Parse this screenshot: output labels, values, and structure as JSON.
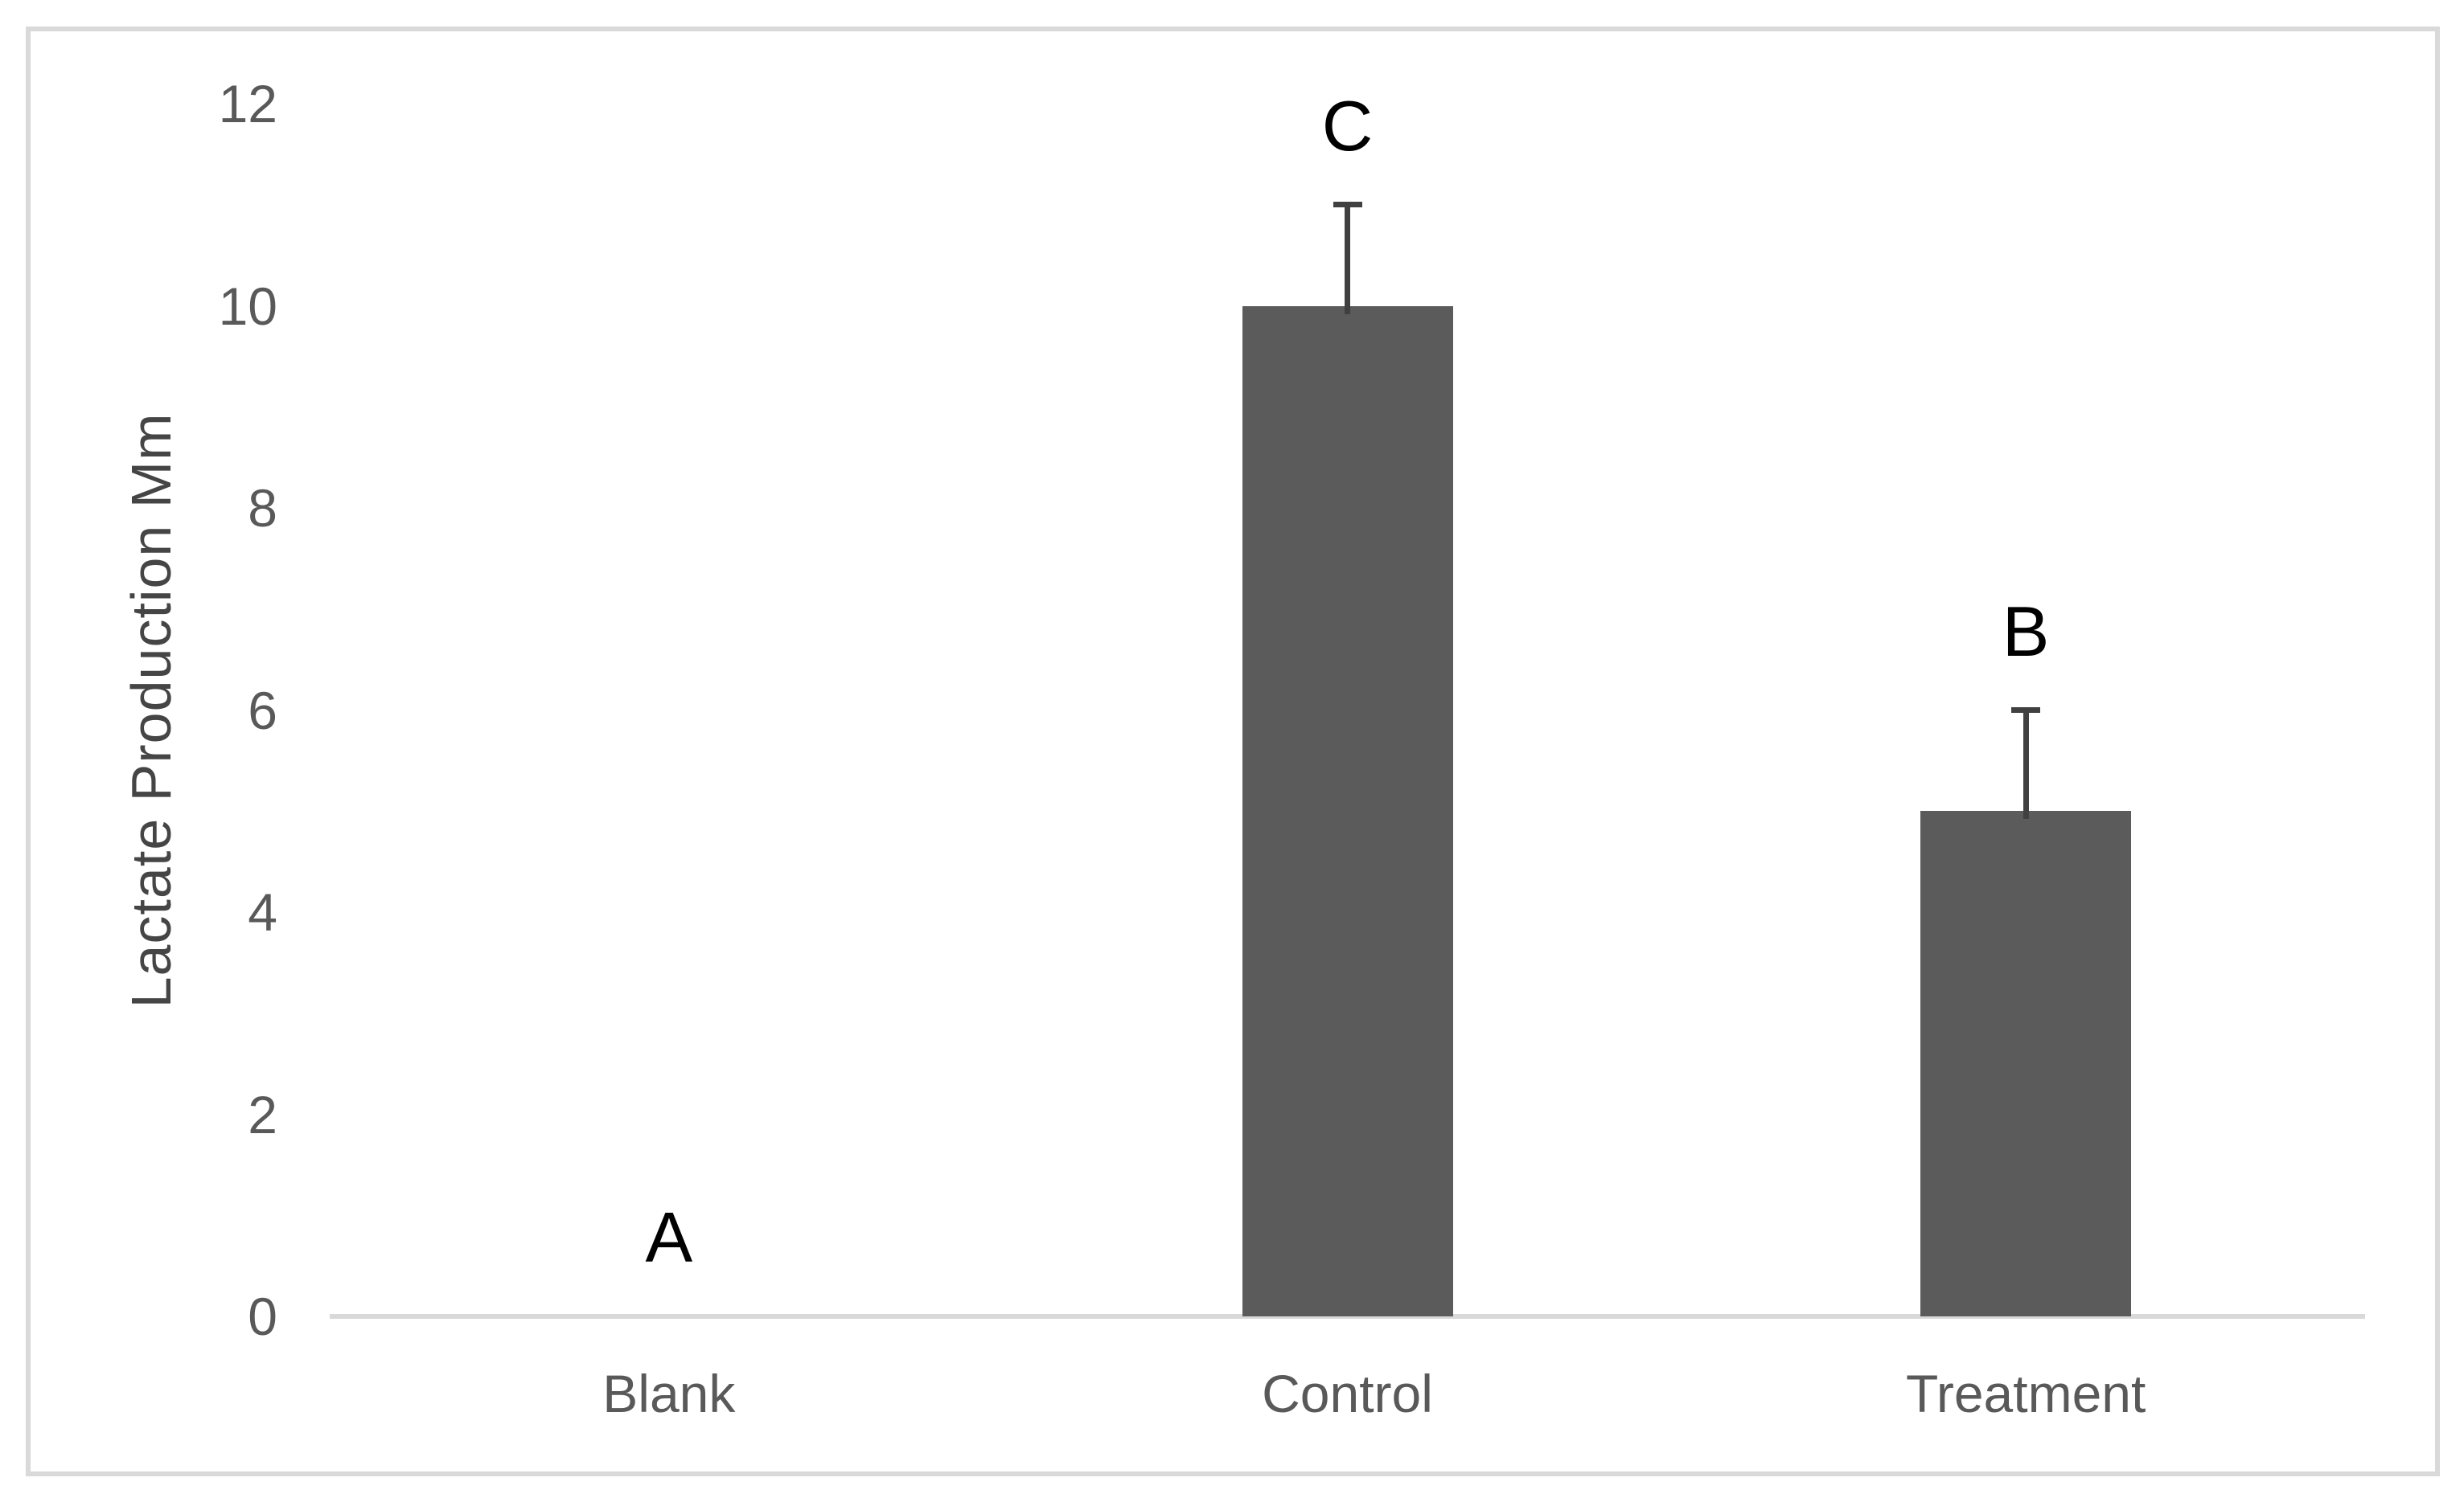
{
  "chart_data": {
    "type": "bar",
    "title": "",
    "xlabel": "",
    "ylabel": "Lactate Production Mm",
    "categories": [
      "Blank",
      "Control",
      "Treatment"
    ],
    "values": [
      0,
      10,
      5
    ],
    "errors_plus": [
      0,
      1,
      1
    ],
    "point_letters": [
      "A",
      "C",
      "B"
    ],
    "yticks": [
      0,
      2,
      4,
      6,
      8,
      10,
      12
    ],
    "ylim": [
      0,
      12
    ],
    "grid": false,
    "legend": "none",
    "colors": {
      "bar_fill": "#5b5b5b",
      "error_bar": "#404040",
      "axis_line": "#d9d9d9",
      "frame_border": "#d9d9d9",
      "tick_text": "#595959",
      "category_text": "#595959",
      "axis_title_text": "#454545",
      "letter_text": "#000000",
      "background": "#ffffff"
    }
  }
}
